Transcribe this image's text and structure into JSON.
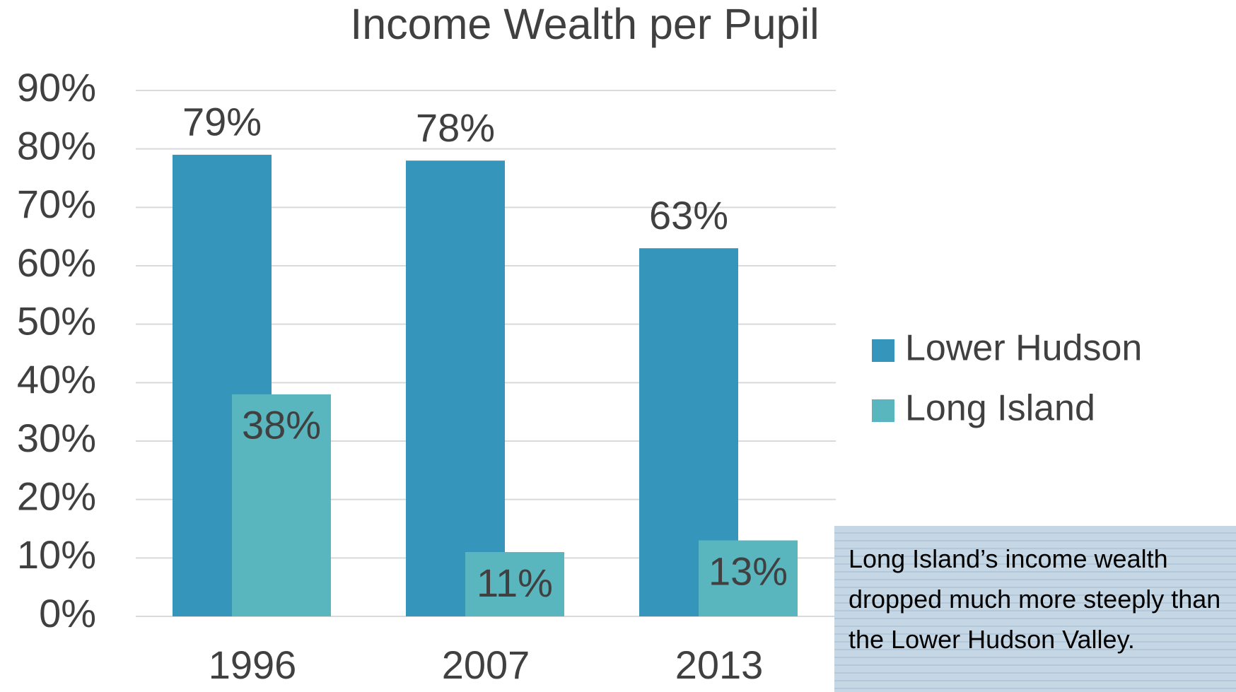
{
  "chart_data": {
    "type": "bar",
    "title": "Income Wealth per Pupil",
    "categories": [
      "1996",
      "2007",
      "2013"
    ],
    "series": [
      {
        "name": "Lower Hudson",
        "color": "#3595bb",
        "values": [
          79,
          78,
          63
        ],
        "value_labels": [
          "79%",
          "78%",
          "63%"
        ]
      },
      {
        "name": "Long Island",
        "color": "#5ab6be",
        "values": [
          38,
          11,
          13
        ],
        "value_labels": [
          "38%",
          "11%",
          "13%"
        ]
      }
    ],
    "ylim": [
      0,
      90
    ],
    "yticks": [
      {
        "value": 0,
        "label": "0%"
      },
      {
        "value": 10,
        "label": "10%"
      },
      {
        "value": 20,
        "label": "20%"
      },
      {
        "value": 30,
        "label": "30%"
      },
      {
        "value": 40,
        "label": "40%"
      },
      {
        "value": 50,
        "label": "50%"
      },
      {
        "value": 60,
        "label": "60%"
      },
      {
        "value": 70,
        "label": "70%"
      },
      {
        "value": 80,
        "label": "80%"
      },
      {
        "value": 90,
        "label": "90%"
      }
    ],
    "grid": true,
    "legend": "right",
    "annotation": "Long Island’s income wealth dropped much more steeply than the Lower Hudson Valley."
  }
}
